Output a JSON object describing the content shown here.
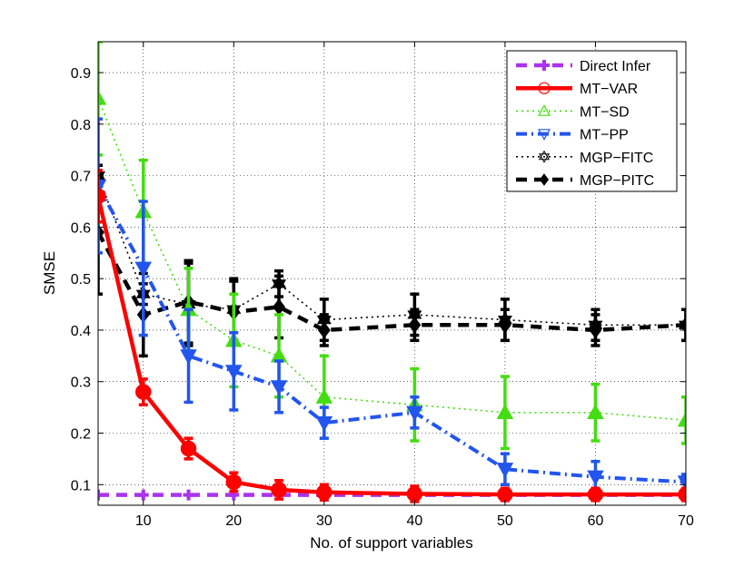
{
  "chart_data": {
    "type": "line",
    "title": "",
    "xlabel": "No. of support variables",
    "ylabel": "SMSE",
    "xlim": [
      5,
      70
    ],
    "ylim": [
      0.06,
      0.96
    ],
    "grid": true,
    "legend_position": "top-right",
    "x": [
      5,
      10,
      15,
      20,
      25,
      30,
      40,
      50,
      60,
      70
    ],
    "x_ticks": [
      10,
      20,
      30,
      40,
      50,
      60,
      70
    ],
    "x_tick_labels": [
      "10",
      "20",
      "30",
      "40",
      "50",
      "60",
      "70"
    ],
    "y_ticks": [
      0.1,
      0.2,
      0.3,
      0.4,
      0.5,
      0.6,
      0.7,
      0.8,
      0.9
    ],
    "y_tick_labels": [
      "0.1",
      "0.2",
      "0.3",
      "0.4",
      "0.5",
      "0.6",
      "0.7",
      "0.8",
      "0.9"
    ],
    "series": [
      {
        "name": "Direct Infer",
        "color": "#aa33ee",
        "line_style": "dashed",
        "marker": "plus",
        "x": [
          5,
          10,
          15,
          20,
          25,
          30,
          40,
          50,
          60,
          70
        ],
        "values": [
          0.08,
          0.08,
          0.08,
          0.08,
          0.08,
          0.08,
          0.08,
          0.08,
          0.08,
          0.08
        ],
        "errors": [
          0,
          0,
          0,
          0,
          0,
          0,
          0,
          0,
          0,
          0
        ]
      },
      {
        "name": "MT−VAR",
        "color": "#ff0000",
        "line_style": "solid",
        "marker": "circle",
        "x": [
          5,
          10,
          15,
          20,
          25,
          30,
          40,
          50,
          60,
          70
        ],
        "values": [
          0.66,
          0.28,
          0.17,
          0.105,
          0.09,
          0.085,
          0.082,
          0.081,
          0.081,
          0.081
        ],
        "errors": [
          0.05,
          0.025,
          0.02,
          0.018,
          0.018,
          0.015,
          0.015,
          0.012,
          0.012,
          0.012
        ]
      },
      {
        "name": "MT−SD",
        "color": "#44dd11",
        "line_style": "dotted",
        "marker": "triangle-up",
        "x": [
          5,
          10,
          15,
          20,
          25,
          30,
          40,
          50,
          60,
          70
        ],
        "values": [
          0.85,
          0.63,
          0.44,
          0.38,
          0.35,
          0.27,
          0.255,
          0.24,
          0.24,
          0.225
        ],
        "errors": [
          0.11,
          0.1,
          0.08,
          0.09,
          0.08,
          0.08,
          0.07,
          0.07,
          0.055,
          0.045
        ]
      },
      {
        "name": "MT−PP",
        "color": "#2255ee",
        "line_style": "dash-dot",
        "marker": "triangle-down",
        "x": [
          5,
          10,
          15,
          20,
          25,
          30,
          40,
          50,
          60,
          70
        ],
        "values": [
          0.68,
          0.52,
          0.35,
          0.32,
          0.29,
          0.22,
          0.24,
          0.13,
          0.115,
          0.105
        ],
        "errors": [
          0.13,
          0.13,
          0.09,
          0.075,
          0.05,
          0.03,
          0.03,
          0.03,
          0.03,
          0.015
        ]
      },
      {
        "name": "MGP−FITC",
        "color": "#000000",
        "line_style": "dotted",
        "marker": "hexagram",
        "x": [
          5,
          10,
          15,
          20,
          25,
          30,
          40,
          50,
          60,
          70
        ],
        "values": [
          0.7,
          0.47,
          0.45,
          0.44,
          0.49,
          0.42,
          0.43,
          0.42,
          0.41,
          0.41
        ],
        "errors": [
          0.02,
          0.02,
          0.08,
          0.06,
          0.025,
          0.04,
          0.04,
          0.04,
          0.03,
          0.03
        ]
      },
      {
        "name": "MGP−PITC",
        "color": "#000000",
        "line_style": "dashed",
        "marker": "diamond",
        "x": [
          5,
          10,
          15,
          20,
          25,
          30,
          40,
          50,
          60,
          70
        ],
        "values": [
          0.59,
          0.43,
          0.455,
          0.435,
          0.445,
          0.4,
          0.41,
          0.41,
          0.4,
          0.41
        ],
        "errors": [
          0.12,
          0.08,
          0.08,
          0.06,
          0.06,
          0.03,
          0.03,
          0.03,
          0.03,
          0.03
        ]
      }
    ]
  }
}
